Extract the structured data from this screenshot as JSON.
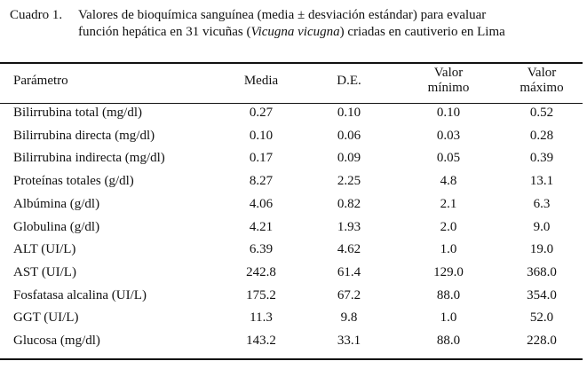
{
  "caption": {
    "number": "Cuadro 1.",
    "line1": "Valores de bioquímica sanguínea (media ± desviación estándar) para evaluar",
    "line2_before": "función hepática en 31 vicuñas (",
    "line2_italic": "Vicugna vicugna",
    "line2_after": ") criadas en cautiverio en Lima"
  },
  "table": {
    "headers": {
      "parametro": "Parámetro",
      "media": "Media",
      "de": "D.E.",
      "minimo_1": "Valor",
      "minimo_2": "mínimo",
      "maximo_1": "Valor",
      "maximo_2": "máximo"
    },
    "rows": [
      {
        "param": "Bilirrubina total (mg/dl)",
        "media": "0.27",
        "de": "0.10",
        "min": "0.10",
        "max": "0.52"
      },
      {
        "param": "Bilirrubina directa (mg/dl)",
        "media": "0.10",
        "de": "0.06",
        "min": "0.03",
        "max": "0.28"
      },
      {
        "param": "Bilirrubina indirecta (mg/dl)",
        "media": "0.17",
        "de": "0.09",
        "min": "0.05",
        "max": "0.39"
      },
      {
        "param": "Proteínas totales (g/dl)",
        "media": "8.27",
        "de": "2.25",
        "min": "4.8",
        "max": "13.1"
      },
      {
        "param": "Albúmina (g/dl)",
        "media": "4.06",
        "de": "0.82",
        "min": "2.1",
        "max": "6.3"
      },
      {
        "param": "Globulina (g/dl)",
        "media": "4.21",
        "de": "1.93",
        "min": "2.0",
        "max": "9.0"
      },
      {
        "param": "ALT (UI/L)",
        "media": "6.39",
        "de": "4.62",
        "min": "1.0",
        "max": "19.0"
      },
      {
        "param": "AST (UI/L)",
        "media": "242.8",
        "de": "61.4",
        "min": "129.0",
        "max": "368.0"
      },
      {
        "param": "Fosfatasa alcalina (UI/L)",
        "media": "175.2",
        "de": "67.2",
        "min": "88.0",
        "max": "354.0"
      },
      {
        "param": "GGT (UI/L)",
        "media": "11.3",
        "de": "9.8",
        "min": "1.0",
        "max": "52.0"
      },
      {
        "param": "Glucosa (mg/dl)",
        "media": "143.2",
        "de": "33.1",
        "min": "88.0",
        "max": "228.0"
      }
    ]
  }
}
